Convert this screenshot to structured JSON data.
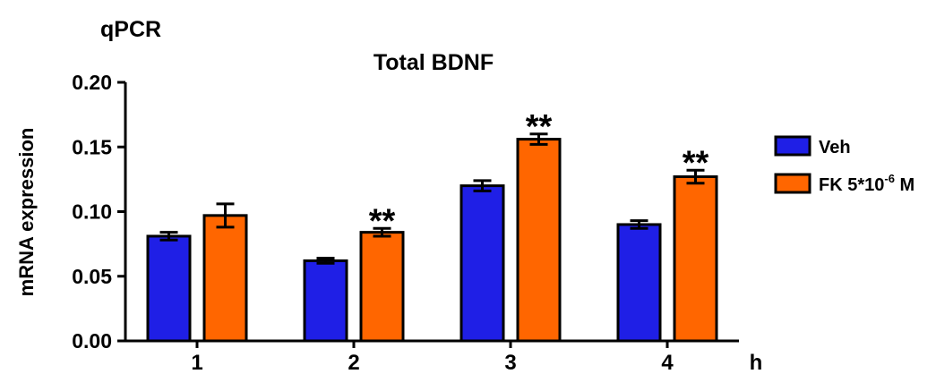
{
  "panel_label": "qPCR",
  "chart_data": {
    "type": "bar",
    "title": "Total BDNF",
    "ylabel": "mRNA expression",
    "xlabel": "h",
    "categories": [
      "1",
      "2",
      "3",
      "4"
    ],
    "ylim": [
      0,
      0.2
    ],
    "yticks": [
      "0.00",
      "0.05",
      "0.10",
      "0.15",
      "0.20"
    ],
    "series": [
      {
        "name": "Veh",
        "color": "#1f1fe6",
        "values": [
          0.081,
          0.062,
          0.12,
          0.09
        ],
        "errors": [
          0.003,
          0.002,
          0.004,
          0.003
        ],
        "annotations": [
          "",
          "",
          "",
          ""
        ]
      },
      {
        "name": "FK 5*10-6 M",
        "name_parts": [
          "FK 5*10",
          "-6",
          " M"
        ],
        "color": "#ff6600",
        "values": [
          0.097,
          0.084,
          0.156,
          0.127
        ],
        "errors": [
          0.009,
          0.003,
          0.004,
          0.005
        ],
        "annotations": [
          "",
          "**",
          "**",
          "**"
        ]
      }
    ],
    "legend_position": "right",
    "grid": false
  }
}
